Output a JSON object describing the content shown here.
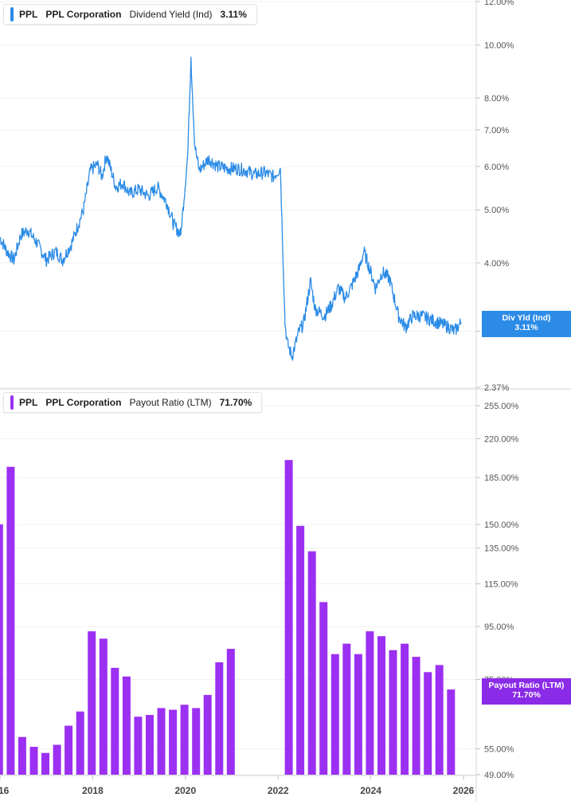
{
  "top_legend": {
    "ticker": "PPL",
    "company": "PPL Corporation",
    "metric": "Dividend Yield (Ind)",
    "value": "3.11%"
  },
  "bottom_legend": {
    "ticker": "PPL",
    "company": "PPL Corporation",
    "metric": "Payout Ratio (LTM)",
    "value": "71.70%"
  },
  "top_tag": {
    "label": "Div Yld (Ind)",
    "value": "3.11%"
  },
  "bottom_tag": {
    "label": "Payout Ratio (LTM)",
    "value": "71.70%"
  },
  "colors": {
    "line": "#2b8be6",
    "bar": "#9b30f2",
    "tag_line": "#2b8be6",
    "tag_bar": "#8a2be8",
    "grid": "#e6e6e6",
    "axis": "#cfcfcf"
  },
  "chart_data": [
    {
      "type": "line",
      "title": "Dividend Yield (Ind)",
      "scale": "log",
      "ylim": [
        2.37,
        12.0
      ],
      "xlim": [
        2016.0,
        2026.0
      ],
      "y_ticks": [
        2.37,
        3.0,
        4.0,
        5.0,
        6.0,
        7.0,
        8.0,
        10.0,
        12.0
      ],
      "y_tick_labels": [
        "2.37%",
        "3.00%",
        "4.00%",
        "5.00%",
        "6.00%",
        "7.00%",
        "8.00%",
        "10.00%",
        "12.00%"
      ],
      "series": [
        {
          "name": "Div Yld (Ind)",
          "x": [
            2016.0,
            2016.15,
            2016.3,
            2016.45,
            2016.6,
            2016.8,
            2017.0,
            2017.2,
            2017.35,
            2017.55,
            2017.8,
            2017.95,
            2018.1,
            2018.2,
            2018.3,
            2018.5,
            2018.65,
            2018.8,
            2019.0,
            2019.2,
            2019.4,
            2019.6,
            2019.75,
            2019.9,
            2020.05,
            2020.12,
            2020.2,
            2020.25,
            2020.3,
            2020.5,
            2020.7,
            2020.9,
            2021.1,
            2021.3,
            2021.5,
            2021.7,
            2021.9,
            2022.05,
            2022.15,
            2022.2,
            2022.3,
            2022.45,
            2022.55,
            2022.7,
            2022.8,
            2023.0,
            2023.15,
            2023.3,
            2023.45,
            2023.6,
            2023.75,
            2023.85,
            2024.0,
            2024.1,
            2024.25,
            2024.4,
            2024.6,
            2024.75,
            2024.9,
            2025.1,
            2025.3,
            2025.5,
            2025.7,
            2025.8,
            2025.95
          ],
          "y": [
            4.45,
            4.2,
            4.05,
            4.5,
            4.6,
            4.35,
            4.05,
            4.2,
            4.05,
            4.35,
            5.0,
            5.9,
            6.05,
            5.75,
            6.3,
            5.5,
            5.6,
            5.35,
            5.45,
            5.3,
            5.5,
            5.15,
            4.7,
            4.5,
            6.3,
            9.5,
            6.6,
            6.2,
            5.9,
            6.2,
            6.0,
            5.95,
            5.95,
            5.9,
            5.8,
            5.85,
            5.75,
            5.95,
            3.1,
            2.85,
            2.7,
            3.0,
            3.1,
            3.7,
            3.3,
            3.2,
            3.35,
            3.6,
            3.45,
            3.65,
            3.9,
            4.2,
            3.85,
            3.6,
            3.85,
            3.75,
            3.2,
            3.05,
            3.2,
            3.2,
            3.15,
            3.1,
            3.05,
            3.0,
            3.11
          ]
        }
      ]
    },
    {
      "type": "bar",
      "title": "Payout Ratio (LTM)",
      "scale": "log",
      "ylim": [
        49.0,
        255.0
      ],
      "xlim": [
        2016.0,
        2026.0
      ],
      "x_tick_labels": [
        "16",
        "2018",
        "2020",
        "2022",
        "2024",
        "2026"
      ],
      "y_ticks": [
        49.0,
        55.0,
        75.0,
        95.0,
        115.0,
        135.0,
        150.0,
        185.0,
        220.0,
        255.0
      ],
      "y_tick_labels": [
        "49.00%",
        "55.00%",
        "75.00%",
        "95.00%",
        "115.00%",
        "135.00%",
        "150.00%",
        "185.00%",
        "220.00%",
        "255.00%"
      ],
      "series": [
        {
          "name": "Payout Ratio (LTM)",
          "x": [
            2015.98,
            2016.23,
            2016.48,
            2016.73,
            2016.98,
            2017.23,
            2017.48,
            2017.73,
            2017.98,
            2018.23,
            2018.48,
            2018.73,
            2018.98,
            2019.23,
            2019.48,
            2019.73,
            2019.98,
            2020.23,
            2020.48,
            2020.73,
            2020.98,
            2022.23,
            2022.48,
            2022.73,
            2022.98,
            2023.23,
            2023.48,
            2023.73,
            2023.98,
            2024.23,
            2024.48,
            2024.73,
            2024.98,
            2025.23,
            2025.48,
            2025.73
          ],
          "y": [
            150.0,
            194.0,
            58.0,
            55.5,
            54.0,
            56.0,
            61.0,
            65.0,
            93.0,
            90.0,
            79.0,
            76.0,
            63.5,
            64.0,
            66.0,
            65.5,
            67.0,
            66.0,
            70.0,
            81.0,
            86.0,
            200.0,
            149.0,
            133.0,
            106.0,
            84.0,
            88.0,
            84.0,
            93.0,
            91.0,
            85.5,
            88.0,
            83.0,
            77.5,
            80.0,
            71.7
          ]
        }
      ]
    }
  ]
}
